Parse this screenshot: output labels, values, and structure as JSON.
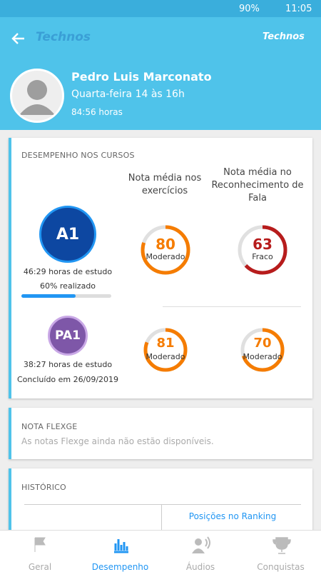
{
  "status_bar": {
    "battery": "90%",
    "time": "11:05"
  },
  "header": {
    "brand": "Technos",
    "brand_right": "Technos",
    "name": "Pedro Luis Marconato",
    "schedule": "Quarta-feira 14 às 16h",
    "hours": "84:56 horas"
  },
  "performance": {
    "title": "DESEMPENHO NOS CURSOS",
    "columns": [
      "Nota média nos exercícios",
      "Nota média no Reconhecimento de Fala"
    ],
    "courses": [
      {
        "level": "A1",
        "study": "46:29 horas de estudo",
        "progress": {
          "value": 60,
          "label": "60% realizado"
        },
        "scores": [
          {
            "value": 80,
            "label": "Moderado",
            "color": "#f57c00"
          },
          {
            "value": 63,
            "label": "Fraco",
            "color": "#b71c1c"
          }
        ]
      },
      {
        "level": "PA1",
        "study": "38:27 horas de estudo",
        "status": "Concluído em 26/09/2019",
        "scores": [
          {
            "value": 81,
            "label": "Moderado",
            "color": "#f57c00"
          },
          {
            "value": 70,
            "label": "Moderado",
            "color": "#f57c00"
          }
        ]
      }
    ]
  },
  "flexge": {
    "title": "NOTA FLEXGE",
    "message": "As notas Flexge ainda não estão disponíveis."
  },
  "history": {
    "title": "HISTÓRICO",
    "ranking": "Posições no Ranking"
  },
  "nav": [
    "Geral",
    "Desempenho",
    "Áudios",
    "Conquistas"
  ]
}
